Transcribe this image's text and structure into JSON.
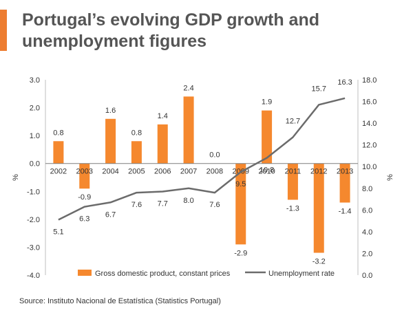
{
  "header": {
    "title_line1": "Portugal’s evolving GDP growth and",
    "title_line2": "unemployment figures"
  },
  "source": "Source: Instituto Nacional de Estatística (Statistics Portugal)",
  "colors": {
    "accent": "#ed7d31",
    "bars": "#f5882e",
    "line": "#6b6b6b",
    "text": "#333333"
  },
  "chart_data": {
    "type": "bar",
    "title": "Portugal’s evolving GDP growth and unemployment figures",
    "categories": [
      "2002",
      "2003",
      "2004",
      "2005",
      "2006",
      "2007",
      "2008",
      "2009",
      "2010",
      "2011",
      "2012",
      "2013"
    ],
    "series": [
      {
        "name": "Gross domestic product, constant prices",
        "type": "bar",
        "axis": "left",
        "values": [
          0.8,
          -0.9,
          1.6,
          0.8,
          1.4,
          2.4,
          0.0,
          -2.9,
          1.9,
          -1.3,
          -3.2,
          -1.4
        ],
        "labels": [
          "0.8",
          "-0.9",
          "1.6",
          "0.8",
          "1.4",
          "2.4",
          "0.0",
          "-2.9",
          "1.9",
          "-1.3",
          "-3.2",
          "-1.4"
        ]
      },
      {
        "name": "Unemployment rate",
        "type": "line",
        "axis": "right",
        "values": [
          5.1,
          6.3,
          6.7,
          7.6,
          7.7,
          8.0,
          7.6,
          9.5,
          10.8,
          12.7,
          15.7,
          16.3
        ],
        "labels": [
          "5.1",
          "6.3",
          "6.7",
          "7.6",
          "7.7",
          "8.0",
          "7.6",
          "9.5",
          "10.8",
          "12.7",
          "15.7",
          "16.3"
        ]
      }
    ],
    "ylabel": "%",
    "ylabel_right": "%",
    "ylim": [
      -4.0,
      3.0
    ],
    "ylim_right": [
      0.0,
      18.0
    ],
    "yticks": [
      "3.0",
      "2.0",
      "1.0",
      "0.0",
      "-1.0",
      "-2.0",
      "-3.0",
      "-4.0"
    ],
    "yticks_right": [
      "18.0",
      "16.0",
      "14.0",
      "12.0",
      "10.0",
      "8.0",
      "6.0",
      "4.0",
      "2.0",
      "0.0"
    ],
    "grid": false,
    "legend": "bottom"
  }
}
